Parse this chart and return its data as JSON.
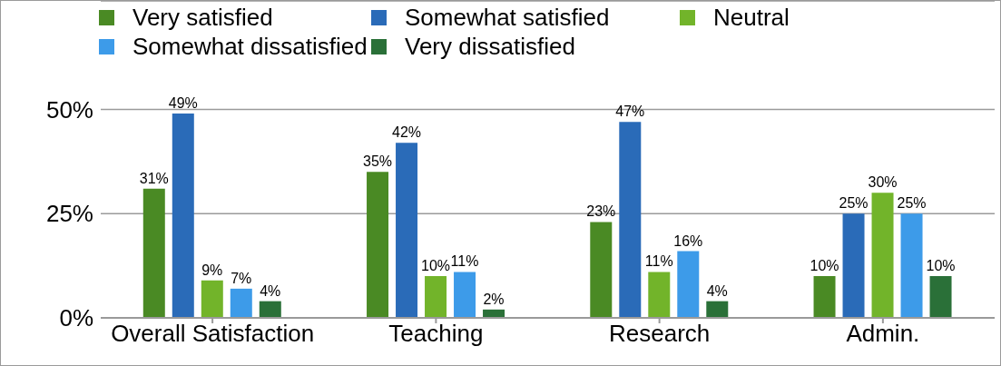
{
  "chart_data": {
    "type": "bar",
    "categories": [
      "Overall Satisfaction",
      "Teaching",
      "Research",
      "Admin."
    ],
    "series": [
      {
        "name": "Very satisfied",
        "color": "#4a8a24",
        "values": [
          31,
          35,
          23,
          10
        ],
        "value_labels": [
          "31%",
          "35%",
          "23%",
          "10%"
        ]
      },
      {
        "name": "Somewhat satisfied",
        "color": "#2a6bb8",
        "values": [
          49,
          42,
          47,
          25
        ],
        "value_labels": [
          "49%",
          "42%",
          "47%",
          "25%"
        ]
      },
      {
        "name": "Neutral",
        "color": "#72b42a",
        "values": [
          9,
          10,
          11,
          30
        ],
        "value_labels": [
          "9%",
          "10%",
          "11%",
          "30%"
        ]
      },
      {
        "name": "Somewhat dissatisfied",
        "color": "#3d9be9",
        "values": [
          7,
          11,
          16,
          25
        ],
        "value_labels": [
          "7%",
          "11%",
          "16%",
          "25%"
        ]
      },
      {
        "name": "Very dissatisfied",
        "color": "#2a7038",
        "values": [
          4,
          2,
          4,
          10
        ],
        "value_labels": [
          "4%",
          "2%",
          "4%",
          "10%"
        ]
      }
    ],
    "ylim": [
      0,
      76
    ],
    "yticks": [
      {
        "value": 0,
        "label": "0%"
      },
      {
        "value": 25,
        "label": "25%"
      },
      {
        "value": 50,
        "label": "50%"
      }
    ],
    "grid": "y",
    "legend": "top"
  }
}
